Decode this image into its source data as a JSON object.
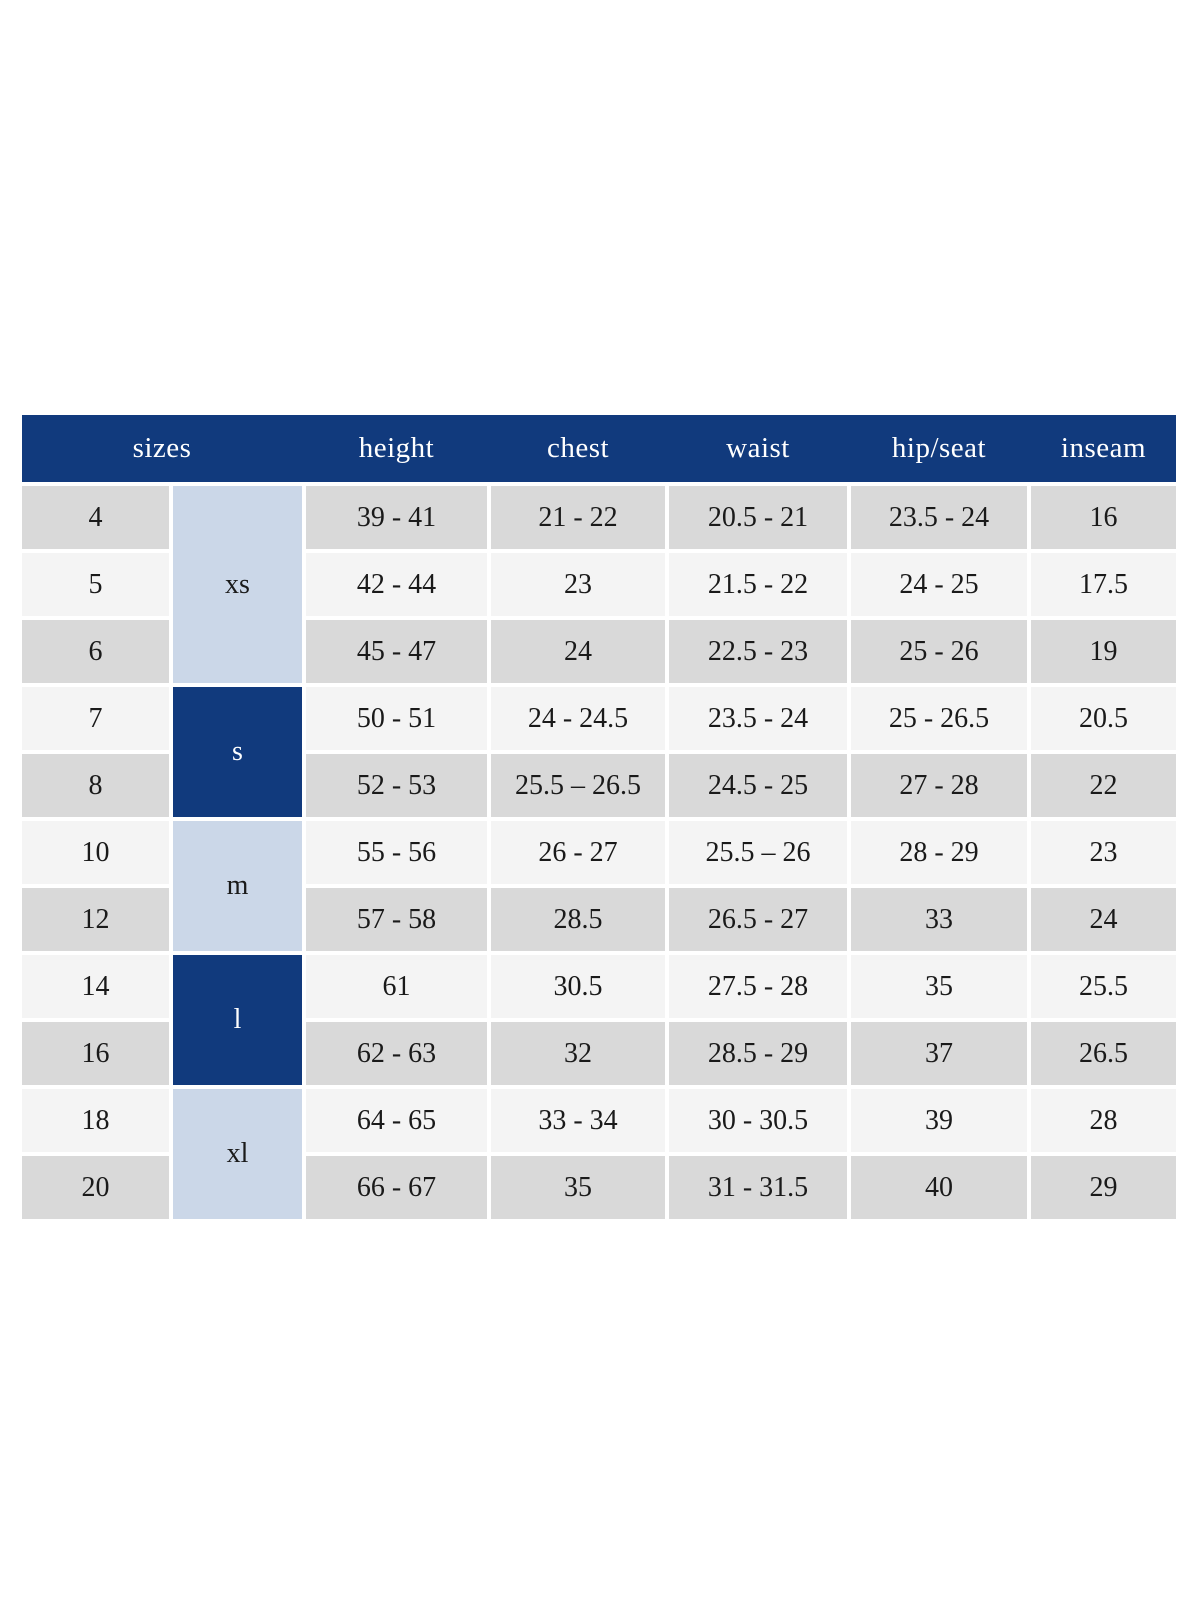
{
  "chart_data": {
    "type": "table",
    "header": {
      "sizes": "sizes",
      "height": "height",
      "chest": "chest",
      "waist": "waist",
      "hip_seat": "hip/seat",
      "inseam": "inseam"
    },
    "size_groups": [
      {
        "label": "xs",
        "row_span": 3,
        "shade": "light"
      },
      {
        "label": "s",
        "row_span": 2,
        "shade": "dark"
      },
      {
        "label": "m",
        "row_span": 2,
        "shade": "light"
      },
      {
        "label": "l",
        "row_span": 2,
        "shade": "dark"
      },
      {
        "label": "xl",
        "row_span": 2,
        "shade": "light"
      }
    ],
    "rows": [
      {
        "size": "4",
        "height": "39 - 41",
        "chest": "21 - 22",
        "waist": "20.5 - 21",
        "hip_seat": "23.5 - 24",
        "inseam": "16"
      },
      {
        "size": "5",
        "height": "42 - 44",
        "chest": "23",
        "waist": "21.5 - 22",
        "hip_seat": "24 - 25",
        "inseam": "17.5"
      },
      {
        "size": "6",
        "height": "45 - 47",
        "chest": "24",
        "waist": "22.5 - 23",
        "hip_seat": "25 - 26",
        "inseam": "19"
      },
      {
        "size": "7",
        "height": "50 - 51",
        "chest": "24 - 24.5",
        "waist": "23.5 - 24",
        "hip_seat": "25 - 26.5",
        "inseam": "20.5"
      },
      {
        "size": "8",
        "height": "52 - 53",
        "chest": "25.5 – 26.5",
        "waist": "24.5 - 25",
        "hip_seat": "27 - 28",
        "inseam": "22"
      },
      {
        "size": "10",
        "height": "55 - 56",
        "chest": "26 - 27",
        "waist": "25.5 – 26",
        "hip_seat": "28 - 29",
        "inseam": "23"
      },
      {
        "size": "12",
        "height": "57 - 58",
        "chest": "28.5",
        "waist": "26.5 - 27",
        "hip_seat": "33",
        "inseam": "24"
      },
      {
        "size": "14",
        "height": "61",
        "chest": "30.5",
        "waist": "27.5 - 28",
        "hip_seat": "35",
        "inseam": "25.5"
      },
      {
        "size": "16",
        "height": "62 - 63",
        "chest": "32",
        "waist": "28.5 - 29",
        "hip_seat": "37",
        "inseam": "26.5"
      },
      {
        "size": "18",
        "height": "64 - 65",
        "chest": "33 - 34",
        "waist": "30 - 30.5",
        "hip_seat": "39",
        "inseam": "28"
      },
      {
        "size": "20",
        "height": "66 - 67",
        "chest": "35",
        "waist": "31 - 31.5",
        "hip_seat": "40",
        "inseam": "29"
      }
    ],
    "colors": {
      "header_bg": "#113a7d",
      "group_dark_bg": "#113a7d",
      "group_light_bg": "#cbd7e8",
      "row_stripe_gray": "#d9d9d9",
      "row_stripe_white": "#f4f4f4",
      "header_text": "#ffffff",
      "body_text": "#1a1a1a"
    },
    "layout_hints": {
      "stripe_order_first_row": "gray",
      "separator": "4px white gaps between cells, continuous header bar"
    }
  }
}
